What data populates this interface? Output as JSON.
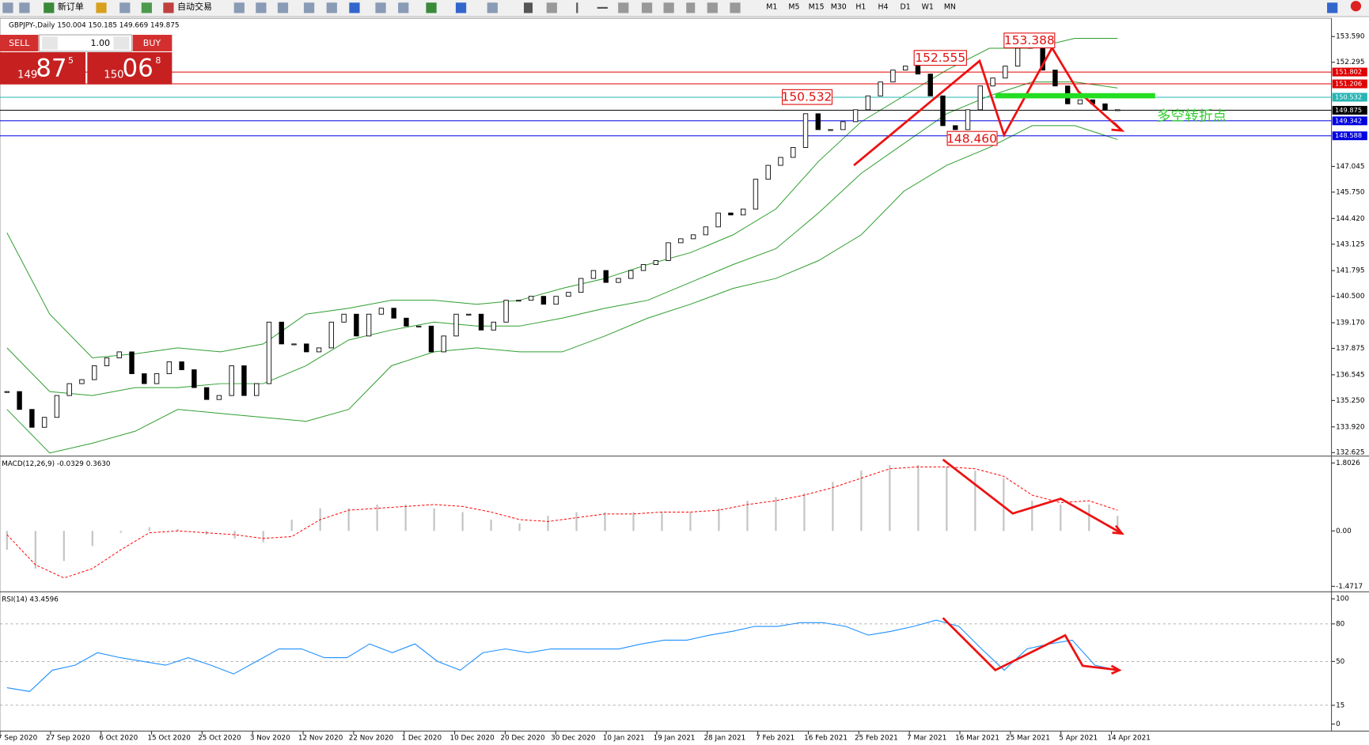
{
  "toolbar": {
    "new_order": "新订单",
    "auto_trading": "自动交易",
    "timeframes": [
      "M1",
      "M5",
      "M15",
      "M30",
      "H1",
      "H4",
      "D1",
      "W1",
      "MN"
    ]
  },
  "trade_panel": {
    "sell": "SELL",
    "buy": "BUY",
    "lots": "1.00",
    "bid": [
      "149",
      "87",
      "5"
    ],
    "ask": [
      "150",
      "06",
      "8"
    ]
  },
  "annotations": {
    "labels": [
      "152.555",
      "153.388",
      "150.532",
      "148.460"
    ],
    "note": "多空转折点"
  },
  "date_axis": {
    "labels": [
      "7 Sep 2020",
      "27 Sep 2020",
      "6 Oct 2020",
      "15 Oct 2020",
      "25 Oct 2020",
      "3 Nov 2020",
      "12 Nov 2020",
      "22 Nov 2020",
      "1 Dec 2020",
      "10 Dec 2020",
      "20 Dec 2020",
      "30 Dec 2020",
      "10 Jan 2021",
      "19 Jan 2021",
      "28 Jan 2021",
      "7 Feb 2021",
      "16 Feb 2021",
      "25 Feb 2021",
      "7 Mar 2021",
      "16 Mar 2021",
      "25 Mar 2021",
      "5 Apr 2021",
      "14 Apr 2021"
    ]
  },
  "chart_data": [
    {
      "type": "candlestick",
      "title": "GBPJPY-,Daily  150.004 150.185 149.669 149.875",
      "values": [
        135.7,
        134.8,
        133.9,
        134.4,
        135.5,
        136.1,
        136.3,
        137.0,
        137.4,
        137.7,
        136.6,
        136.1,
        136.6,
        137.2,
        136.8,
        135.9,
        135.3,
        135.5,
        137.0,
        135.5,
        136.1,
        139.2,
        138.1,
        138.1,
        137.7,
        137.9,
        139.2,
        139.6,
        138.5,
        139.6,
        139.9,
        139.4,
        139.0,
        139.0,
        137.7,
        138.5,
        139.6,
        139.6,
        138.8,
        139.2,
        140.3,
        140.3,
        140.5,
        140.1,
        140.5,
        140.7,
        141.4,
        141.8,
        141.2,
        141.4,
        141.8,
        142.1,
        142.3,
        143.2,
        143.4,
        143.6,
        144.0,
        144.7,
        144.6,
        144.9,
        146.4,
        147.1,
        147.5,
        148.0,
        149.7,
        148.9,
        148.9,
        149.3,
        149.9,
        150.6,
        151.3,
        151.9,
        152.1,
        151.7,
        150.6,
        149.1,
        148.9,
        149.9,
        151.1,
        151.5,
        152.1,
        153.0,
        153.2,
        151.9,
        151.1,
        150.2,
        150.4,
        150.2,
        149.9,
        149.9
      ],
      "bands": [
        {
          "color": "#2f9e2f",
          "values": [
            143.7,
            139.6,
            137.4,
            137.6,
            137.9,
            137.7,
            138.1,
            139.6,
            139.9,
            140.3,
            140.3,
            140.1,
            140.3,
            140.9,
            141.4,
            142.1,
            142.7,
            143.6,
            144.9,
            147.3,
            149.3,
            150.6,
            151.9,
            153.0,
            153.0,
            153.5,
            153.5
          ]
        },
        {
          "color": "#2f9e2f",
          "values": [
            137.9,
            135.7,
            135.5,
            135.9,
            135.9,
            136.1,
            136.1,
            137.0,
            138.3,
            138.8,
            139.2,
            139.0,
            139.0,
            139.4,
            139.9,
            140.3,
            141.2,
            142.1,
            142.9,
            144.7,
            146.7,
            148.2,
            149.7,
            150.6,
            151.3,
            151.3,
            151.0
          ]
        },
        {
          "color": "#2f9e2f",
          "values": [
            134.8,
            132.6,
            133.1,
            133.7,
            134.8,
            134.6,
            134.4,
            134.2,
            134.8,
            137.0,
            137.7,
            137.9,
            137.7,
            137.7,
            138.5,
            139.4,
            140.1,
            140.9,
            141.4,
            142.3,
            143.6,
            145.8,
            147.1,
            148.0,
            149.1,
            149.1,
            148.4
          ]
        }
      ],
      "levels": [
        {
          "value": 151.802,
          "color": "#e00000"
        },
        {
          "value": 151.206,
          "color": "#e00000"
        },
        {
          "value": 150.532,
          "color": "#26b5b5"
        },
        {
          "value": 149.875,
          "color": "#000000"
        },
        {
          "value": 149.342,
          "color": "#0000e0"
        },
        {
          "value": 148.588,
          "color": "#0000e0"
        }
      ],
      "ylim": [
        132.494,
        154.467
      ],
      "yticks": [
        {
          "value": 153.59,
          "label": "153.590"
        },
        152.295,
        147.045,
        {
          "value": 145.75,
          "label": "145.750"
        },
        {
          "value": 144.42,
          "label": "144.420"
        },
        143.125,
        141.795,
        {
          "value": 140.5,
          "label": "140.500"
        },
        {
          "value": 139.17,
          "label": "139.170"
        },
        137.875,
        136.545,
        {
          "value": 135.25,
          "label": "135.250"
        },
        {
          "value": 133.92,
          "label": "133.920"
        },
        132.625
      ]
    },
    {
      "type": "macd",
      "title": "MACD(12,26,9) -0.0329 0.3630",
      "series": [
        {
          "color": "#c4c4c4",
          "values": [
            -0.5,
            -1.0,
            -0.8,
            -0.4,
            -0.05,
            0.1,
            0.05,
            -0.1,
            -0.2,
            -0.3,
            0.3,
            0.6,
            0.6,
            0.7,
            0.7,
            0.6,
            0.5,
            0.3,
            0.2,
            0.4,
            0.5,
            0.5,
            0.5,
            0.5,
            0.5,
            0.6,
            0.8,
            0.9,
            1.0,
            1.3,
            1.6,
            1.75,
            1.75,
            1.7,
            1.6,
            1.4,
            0.8,
            0.7,
            0.7,
            0.4
          ]
        },
        {
          "color": "#ff0000",
          "values": [
            -0.1,
            -0.9,
            -1.25,
            -1.0,
            -0.5,
            -0.05,
            0.0,
            -0.05,
            -0.1,
            -0.2,
            -0.15,
            0.3,
            0.55,
            0.6,
            0.65,
            0.7,
            0.65,
            0.5,
            0.3,
            0.25,
            0.35,
            0.45,
            0.45,
            0.5,
            0.5,
            0.55,
            0.7,
            0.8,
            0.95,
            1.15,
            1.4,
            1.65,
            1.7,
            1.7,
            1.65,
            1.45,
            0.95,
            0.75,
            0.8,
            0.55
          ]
        }
      ],
      "ylim": [
        -1.571,
        1.964
      ],
      "yticks": [
        1.8026,
        {
          "value": 0,
          "label": "0.00"
        },
        -1.4717
      ]
    },
    {
      "type": "line",
      "title": "RSI(14) 43.4596",
      "color": "#1e90ff",
      "values": [
        29,
        26,
        43,
        47,
        57,
        53,
        50,
        47,
        53,
        47,
        40,
        50,
        60,
        60,
        53,
        53,
        64,
        57,
        64,
        50,
        43,
        57,
        60,
        57,
        60,
        60,
        60,
        60,
        64,
        67,
        67,
        71,
        74,
        78,
        78,
        81,
        81,
        78,
        71,
        74,
        78,
        83,
        78,
        60,
        43,
        60,
        64,
        67,
        47,
        43
      ],
      "ylim": [
        -5.6,
        104.9
      ],
      "yticks": [
        100,
        80,
        50,
        15,
        0
      ]
    }
  ]
}
